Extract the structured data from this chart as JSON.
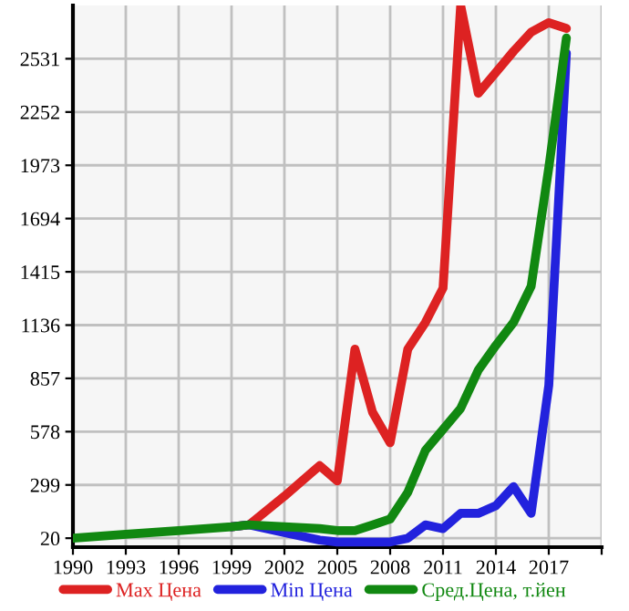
{
  "chart_data": {
    "type": "line",
    "x": [
      1990,
      1993,
      1996,
      1999,
      2000,
      2002,
      2004,
      2005,
      2006,
      2007,
      2008,
      2009,
      2010,
      2011,
      2012,
      2013,
      2014,
      2015,
      2016,
      2017,
      2018
    ],
    "series": [
      {
        "name": "Max Цена",
        "color": "#dd2222",
        "values": [
          null,
          null,
          null,
          80,
          90,
          240,
          400,
          320,
          1010,
          680,
          520,
          1010,
          1150,
          1330,
          2810,
          2350,
          2460,
          2570,
          2670,
          2720,
          2690
        ]
      },
      {
        "name": "Min Цена",
        "color": "#2222dd",
        "values": [
          null,
          null,
          null,
          80,
          90,
          50,
          10,
          0,
          0,
          0,
          0,
          20,
          90,
          70,
          150,
          150,
          190,
          290,
          150,
          820,
          2560
        ]
      },
      {
        "name": "Сред.Цена, т.йен",
        "color": "#118811",
        "values": [
          20,
          40,
          60,
          80,
          90,
          80,
          70,
          60,
          60,
          90,
          120,
          260,
          480,
          590,
          700,
          900,
          1030,
          1150,
          1340,
          1960,
          2640
        ]
      }
    ],
    "xlim": [
      1990,
      2020
    ],
    "xticks": [
      1990,
      1993,
      1996,
      1999,
      2002,
      2005,
      2008,
      2011,
      2014,
      2017,
      {
        "value": 2020,
        "label": null
      }
    ],
    "ylim": [
      -27,
      2810
    ],
    "yticks": [
      20,
      299,
      578,
      857,
      1136,
      1415,
      1694,
      1973,
      2252,
      2531
    ],
    "grid": true,
    "legend": "bottom",
    "marker": "none",
    "line_style": "solid"
  }
}
